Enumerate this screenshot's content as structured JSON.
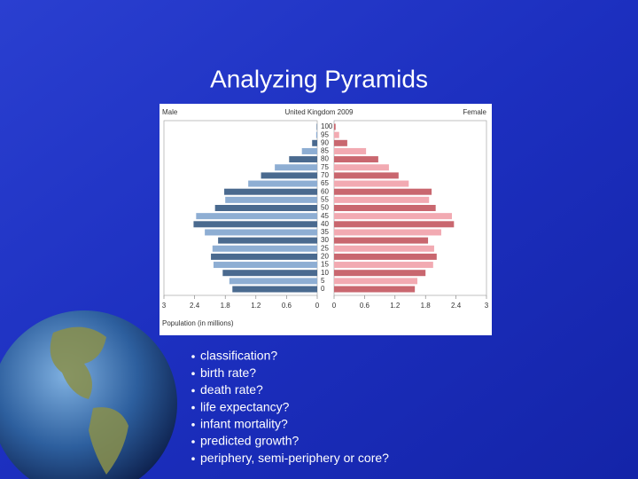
{
  "slide": {
    "title": "Analyzing Pyramids",
    "bullets": [
      "classification?",
      "birth rate?",
      "death rate?",
      "life expectancy?",
      "infant mortality?",
      "predicted growth?",
      "periphery, semi-periphery or core?"
    ]
  },
  "chart_data": {
    "type": "pyramid",
    "title": "United Kingdom 2009",
    "x_label": "Population (in millions)",
    "categories": [
      "100",
      "95",
      "90",
      "85",
      "80",
      "75",
      "70",
      "65",
      "60",
      "55",
      "50",
      "45",
      "40",
      "35",
      "30",
      "25",
      "20",
      "15",
      "10",
      "5",
      "0"
    ],
    "series": [
      {
        "name": "Male",
        "side": "left",
        "color": "#4a6a8f",
        "alternate_color": "#8eaed3",
        "values": [
          0.01,
          0.02,
          0.1,
          0.3,
          0.55,
          0.83,
          1.1,
          1.35,
          1.82,
          1.8,
          2.0,
          2.37,
          2.42,
          2.2,
          1.94,
          2.05,
          2.08,
          2.03,
          1.85,
          1.72,
          1.66
        ]
      },
      {
        "name": "Female",
        "side": "right",
        "color": "#c9676f",
        "alternate_color": "#f2aab2",
        "values": [
          0.03,
          0.1,
          0.26,
          0.63,
          0.87,
          1.08,
          1.27,
          1.47,
          1.92,
          1.87,
          2.0,
          2.32,
          2.36,
          2.11,
          1.85,
          1.97,
          2.02,
          1.95,
          1.8,
          1.64,
          1.59
        ]
      }
    ],
    "xlim": [
      0,
      3
    ],
    "xticks": [
      0,
      0.6,
      1.2,
      1.8,
      2.4,
      3
    ]
  }
}
